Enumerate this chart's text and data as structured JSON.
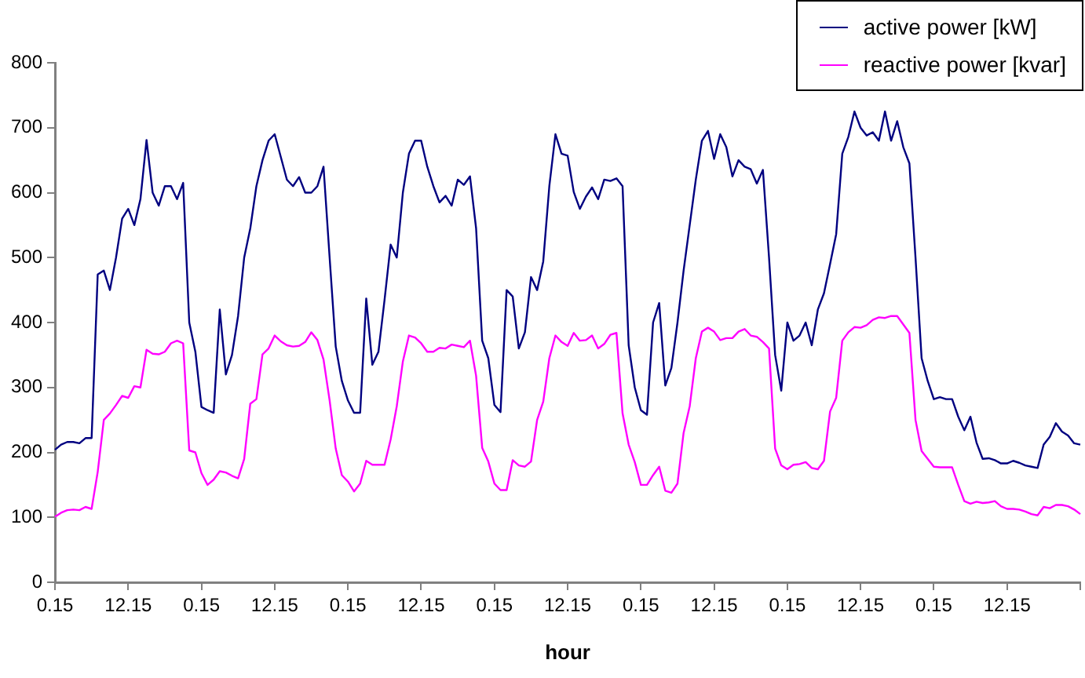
{
  "chart_data": {
    "type": "line",
    "xlabel": "hour",
    "legend": "top right",
    "marker": "none",
    "line_style": "solid",
    "categories": [
      "0.15",
      null,
      null,
      null,
      null,
      null,
      null,
      null,
      null,
      null,
      null,
      null,
      "12.15",
      null,
      null,
      null,
      null,
      null,
      null,
      null,
      null,
      null,
      null,
      null,
      "0.15",
      null,
      null,
      null,
      null,
      null,
      null,
      null,
      null,
      null,
      null,
      null,
      "12.15",
      null,
      null,
      null,
      null,
      null,
      null,
      null,
      null,
      null,
      null,
      null,
      "0.15",
      null,
      null,
      null,
      null,
      null,
      null,
      null,
      null,
      null,
      null,
      null,
      "12.15",
      null,
      null,
      null,
      null,
      null,
      null,
      null,
      null,
      null,
      null,
      null,
      "0.15",
      null,
      null,
      null,
      null,
      null,
      null,
      null,
      null,
      null,
      null,
      null,
      "12.15",
      null,
      null,
      null,
      null,
      null,
      null,
      null,
      null,
      null,
      null,
      null,
      "0.15",
      null,
      null,
      null,
      null,
      null,
      null,
      null,
      null,
      null,
      null,
      null,
      "12.15",
      null,
      null,
      null,
      null,
      null,
      null,
      null,
      null,
      null,
      null,
      null,
      "0.15",
      null,
      null,
      null,
      null,
      null,
      null,
      null,
      null,
      null,
      null,
      null,
      "12.15",
      null,
      null,
      null,
      null,
      null,
      null,
      null,
      null,
      null,
      null,
      null,
      "0.15",
      null,
      null,
      null,
      null,
      null,
      null,
      null,
      null,
      null,
      null,
      null,
      "12.15",
      null,
      null,
      null,
      null,
      null,
      null,
      null,
      null,
      null,
      null,
      null,
      null
    ],
    "ylim": [
      0,
      800
    ],
    "yticks": [
      0,
      100,
      200,
      300,
      400,
      500,
      600,
      700,
      800
    ],
    "series": [
      {
        "name": "active power [kW]",
        "color": "#000080",
        "values": [
          204,
          212,
          216,
          216,
          214,
          222,
          222,
          474,
          480,
          450,
          500,
          560,
          575,
          550,
          590,
          681,
          600,
          580,
          610,
          610,
          590,
          615,
          400,
          355,
          270,
          265,
          261,
          420,
          320,
          350,
          410,
          500,
          545,
          610,
          650,
          680,
          690,
          655,
          620,
          610,
          624,
          600,
          600,
          610,
          640,
          500,
          363,
          310,
          280,
          261,
          261,
          437,
          335,
          355,
          435,
          520,
          500,
          600,
          660,
          680,
          680,
          640,
          610,
          585,
          595,
          580,
          620,
          612,
          625,
          545,
          372,
          345,
          273,
          262,
          450,
          440,
          360,
          385,
          470,
          450,
          494,
          610,
          690,
          660,
          657,
          601,
          575,
          594,
          608,
          590,
          620,
          618,
          622,
          610,
          365,
          300,
          265,
          258,
          400,
          430,
          303,
          330,
          400,
          480,
          550,
          620,
          680,
          695,
          652,
          690,
          670,
          625,
          650,
          640,
          636,
          614,
          635,
          500,
          350,
          295,
          400,
          372,
          380,
          400,
          365,
          420,
          445,
          490,
          536,
          660,
          686,
          725,
          700,
          688,
          693,
          680,
          725,
          680,
          710,
          670,
          645,
          500,
          345,
          310,
          282,
          285,
          282,
          282,
          255,
          234,
          255,
          215,
          190,
          191,
          188,
          183,
          183,
          187,
          184,
          180,
          178,
          176,
          212,
          224,
          245,
          232,
          226,
          214,
          212
        ]
      },
      {
        "name": "reactive power [kvar]",
        "color": "#ff00ff",
        "values": [
          101,
          107,
          111,
          112,
          111,
          116,
          113,
          170,
          250,
          260,
          273,
          287,
          284,
          302,
          300,
          358,
          352,
          351,
          355,
          368,
          372,
          368,
          203,
          200,
          168,
          150,
          158,
          171,
          169,
          164,
          160,
          190,
          275,
          282,
          351,
          360,
          380,
          371,
          365,
          363,
          364,
          370,
          385,
          373,
          343,
          280,
          206,
          165,
          155,
          140,
          152,
          187,
          181,
          181,
          181,
          220,
          271,
          340,
          380,
          377,
          368,
          355,
          355,
          361,
          360,
          366,
          364,
          362,
          372,
          318,
          207,
          186,
          152,
          142,
          142,
          188,
          180,
          178,
          186,
          250,
          278,
          345,
          380,
          370,
          364,
          384,
          372,
          373,
          380,
          360,
          367,
          381,
          384,
          260,
          212,
          185,
          150,
          150,
          165,
          178,
          141,
          138,
          152,
          230,
          271,
          345,
          386,
          392,
          386,
          373,
          376,
          376,
          386,
          390,
          380,
          378,
          370,
          360,
          206,
          180,
          174,
          181,
          182,
          185,
          176,
          174,
          187,
          263,
          284,
          372,
          385,
          393,
          392,
          396,
          404,
          408,
          407,
          410,
          410,
          397,
          384,
          250,
          202,
          190,
          178,
          177,
          177,
          177,
          150,
          125,
          121,
          124,
          122,
          123,
          125,
          117,
          113,
          113,
          112,
          109,
          105,
          103,
          116,
          114,
          119,
          119,
          117,
          112,
          105
        ]
      }
    ]
  }
}
